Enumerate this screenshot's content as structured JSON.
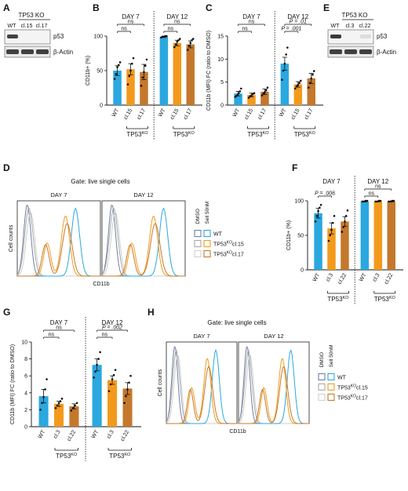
{
  "colors": {
    "wt": "#2aa8df",
    "c1": "#f39a1d",
    "c2": "#c4782c",
    "ctrl1": "#6e7fa8",
    "ctrl2": "#a9a9a9",
    "ctrl3": "#cfcfcf",
    "band": "#2e2e2e"
  },
  "panel_labels": {
    "A": "A",
    "B": "B",
    "C": "C",
    "D": "D",
    "E": "E",
    "F": "F",
    "G": "G",
    "H": "H"
  },
  "blots": {
    "a": {
      "header": "TP53 KO",
      "lanes": [
        "WT",
        "cl.15",
        "cl.17"
      ],
      "rows": [
        "p53",
        "β-Actin"
      ]
    },
    "e": {
      "header": "TP53 KO",
      "lanes": [
        "WT",
        "cl.3",
        "cl.22"
      ],
      "rows": [
        "p53",
        "β-Actin"
      ]
    }
  },
  "flow": {
    "d": {
      "title": "Gate: live single cells",
      "days": [
        "DAY 7",
        "DAY 12"
      ],
      "ylabel": "Cell counts",
      "xlabel": "CD11b",
      "legend_heads": [
        "DMSO",
        "Sell 50nM"
      ],
      "legend_items": [
        "WT",
        "TP53",
        "TP53"
      ],
      "legend_sups": [
        "",
        "KO",
        "KO"
      ],
      "legend_suffix": [
        "",
        "cl.15",
        "cl.17"
      ]
    },
    "h": {
      "title": "Gate: live single cells",
      "days": [
        "DAY 7",
        "DAY 12"
      ],
      "ylabel": "Cell counts",
      "xlabel": "CD11b",
      "legend_heads": [
        "DMSO",
        "Sell 50nM"
      ],
      "legend_items": [
        "WT",
        "TP53",
        "TP53"
      ],
      "legend_sups": [
        "",
        "KO",
        "KO"
      ],
      "legend_suffix": [
        "",
        "cl.15",
        "cl.17"
      ]
    }
  },
  "chart_data": [
    {
      "id": "B",
      "type": "bar",
      "ylabel": "CD11b+ (%)",
      "ylim": [
        0,
        100
      ],
      "yticks": [
        "0",
        "50",
        "100"
      ],
      "days": [
        "DAY 7",
        "DAY 12"
      ],
      "categories": [
        "WT",
        "cl.15",
        "cl.17",
        "WT",
        "cl.15",
        "cl.17"
      ],
      "values": [
        50,
        52,
        48,
        99,
        90,
        88
      ],
      "errors": [
        7,
        8,
        11,
        1,
        4,
        5
      ],
      "group_label": "TP53",
      "group_sup": "KO",
      "dots": [
        [
          38,
          45,
          55,
          58,
          62
        ],
        [
          30,
          42,
          50,
          60,
          68
        ],
        [
          28,
          40,
          48,
          57,
          66
        ],
        [
          98,
          99,
          99,
          100,
          100
        ],
        [
          84,
          88,
          92,
          94,
          96
        ],
        [
          80,
          86,
          90,
          94,
          96
        ]
      ],
      "sig": [
        {
          "a": 0,
          "b": 1,
          "text": "ns",
          "level": 0
        },
        {
          "a": 0,
          "b": 2,
          "text": "ns",
          "level": 1
        },
        {
          "a": 3,
          "b": 4,
          "text": "ns",
          "level": 0
        },
        {
          "a": 3,
          "b": 5,
          "text": "ns",
          "level": 1
        }
      ]
    },
    {
      "id": "C",
      "type": "bar",
      "ylabel": "CD11b (MFI) FC (ratio to DMSO)",
      "ylim": [
        0,
        15
      ],
      "yticks": [
        "0",
        "5",
        "10",
        "15"
      ],
      "days": [
        "DAY 7",
        "DAY 12"
      ],
      "categories": [
        "WT",
        "cl.15",
        "cl.17",
        "WT",
        "cl.15",
        "cl.17"
      ],
      "values": [
        2.5,
        2.2,
        2.9,
        9.0,
        4.5,
        5.8
      ],
      "errors": [
        0.5,
        0.4,
        0.6,
        1.4,
        0.6,
        1.1
      ],
      "group_label": "TP53",
      "group_sup": "KO",
      "dots": [
        [
          1.8,
          2.0,
          2.3,
          2.6,
          3.0,
          3.6
        ],
        [
          1.6,
          1.9,
          2.1,
          2.4,
          2.6
        ],
        [
          2.1,
          2.5,
          2.8,
          3.2,
          3.8
        ],
        [
          5.5,
          7.5,
          9.0,
          11.0,
          12.5
        ],
        [
          3.6,
          4.1,
          4.4,
          4.8,
          5.3
        ],
        [
          3.8,
          4.8,
          5.8,
          6.6,
          7.4
        ]
      ],
      "sig": [
        {
          "a": 0,
          "b": 1,
          "text": "ns",
          "level": 0
        },
        {
          "a": 0,
          "b": 2,
          "text": "ns",
          "level": 1
        },
        {
          "a": 3,
          "b": 4,
          "text": "P = .001",
          "level": 0
        },
        {
          "a": 3,
          "b": 5,
          "text": "P = .01",
          "level": 1
        }
      ]
    },
    {
      "id": "F",
      "type": "bar",
      "ylabel": "CD11b+ (%)",
      "ylim": [
        0,
        100
      ],
      "yticks": [
        "0",
        "50",
        "100"
      ],
      "days": [
        "DAY 7",
        "DAY 12"
      ],
      "categories": [
        "WT",
        "cl.3",
        "cl.22",
        "WT",
        "cl.3",
        "cl.22"
      ],
      "values": [
        82,
        60,
        70,
        99,
        99,
        99
      ],
      "errors": [
        7,
        8,
        7,
        0.5,
        0.5,
        0.5
      ],
      "group_label": "TP53",
      "group_sup": "KO",
      "dots": [
        [
          70,
          78,
          85,
          90,
          94
        ],
        [
          42,
          50,
          58,
          68,
          78
        ],
        [
          55,
          62,
          70,
          78,
          86
        ],
        [
          99,
          99,
          100,
          100
        ],
        [
          99,
          99,
          100,
          100
        ],
        [
          99,
          99,
          100,
          100
        ]
      ],
      "sig": [
        {
          "a": 0,
          "b": 1,
          "text": "P = .006",
          "level": 0
        },
        {
          "a": 3,
          "b": 4,
          "text": "ns",
          "level": 0
        },
        {
          "a": 3,
          "b": 5,
          "text": "ns",
          "level": 1
        }
      ]
    },
    {
      "id": "G",
      "type": "bar",
      "ylabel": "CD11b (MFI) FC (ratio to DMSO)",
      "ylim": [
        0,
        10
      ],
      "yticks": [
        "0",
        "2",
        "4",
        "6",
        "8",
        "10"
      ],
      "days": [
        "DAY 7",
        "DAY 12"
      ],
      "categories": [
        "WT",
        "cl.3",
        "cl.22",
        "WT",
        "cl.3",
        "cl.22"
      ],
      "values": [
        3.6,
        2.7,
        2.4,
        7.3,
        5.5,
        4.5
      ],
      "errors": [
        0.8,
        0.3,
        0.3,
        0.7,
        0.5,
        0.7
      ],
      "group_label": "TP53",
      "group_sup": "KO",
      "dots": [
        [
          2.0,
          2.8,
          3.5,
          4.4,
          5.6
        ],
        [
          2.2,
          2.5,
          2.8,
          3.0,
          3.3
        ],
        [
          1.9,
          2.2,
          2.5,
          2.8
        ],
        [
          5.8,
          6.5,
          7.3,
          8.0,
          8.8
        ],
        [
          4.2,
          5.0,
          5.6,
          6.1,
          6.7
        ],
        [
          2.8,
          3.6,
          4.4,
          5.2,
          6.0
        ]
      ],
      "sig": [
        {
          "a": 0,
          "b": 1,
          "text": "ns",
          "level": 0
        },
        {
          "a": 0,
          "b": 2,
          "text": "ns",
          "level": 1
        },
        {
          "a": 3,
          "b": 4,
          "text": "ns",
          "level": 0
        },
        {
          "a": 3,
          "b": 5,
          "text": "P = .002",
          "level": 1
        }
      ]
    }
  ]
}
